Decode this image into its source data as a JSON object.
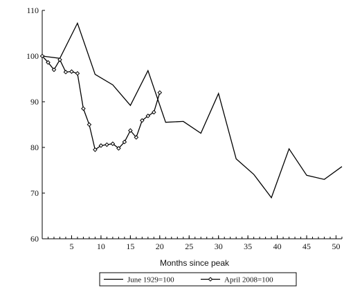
{
  "chart_data": {
    "type": "line",
    "title": "",
    "xlabel": "Months since peak",
    "ylabel": "",
    "xlim": [
      0,
      51
    ],
    "ylim": [
      60,
      110
    ],
    "x_ticks": [
      5,
      10,
      15,
      20,
      25,
      30,
      35,
      40,
      45,
      50
    ],
    "x_tick_labels": [
      "5",
      "10",
      "15",
      "20",
      "25",
      "30",
      "35",
      "40",
      "45",
      "50"
    ],
    "y_ticks": [
      60,
      70,
      80,
      90,
      100,
      110
    ],
    "y_tick_labels": [
      "60",
      "70",
      "80",
      "90",
      "100",
      "110"
    ],
    "grid": false,
    "legend_position": "bottom",
    "series": [
      {
        "name": "June 1929=100",
        "marker": "none",
        "color": "#000000",
        "points": [
          [
            0,
            100
          ],
          [
            3,
            99.5
          ],
          [
            6,
            107.2
          ],
          [
            9,
            96
          ],
          [
            12,
            93.7
          ],
          [
            15,
            89.2
          ],
          [
            18,
            96.8
          ],
          [
            21,
            85.5
          ],
          [
            24,
            85.7
          ],
          [
            27,
            83.1
          ],
          [
            30,
            91.8
          ],
          [
            33,
            77.5
          ],
          [
            36,
            74.1
          ],
          [
            39,
            69
          ],
          [
            42,
            79.7
          ],
          [
            45,
            73.9
          ],
          [
            48,
            73
          ],
          [
            51,
            75.8
          ]
        ]
      },
      {
        "name": "April 2008=100",
        "marker": "diamond",
        "color": "#000000",
        "points": [
          [
            0,
            100
          ],
          [
            1,
            98.6
          ],
          [
            2,
            97
          ],
          [
            3,
            99.2
          ],
          [
            4,
            96.5
          ],
          [
            5,
            96.6
          ],
          [
            6,
            96.2
          ],
          [
            7,
            88.5
          ],
          [
            8,
            85
          ],
          [
            9,
            79.5
          ],
          [
            10,
            80.4
          ],
          [
            11,
            80.6
          ],
          [
            12,
            80.8
          ],
          [
            13,
            79.8
          ],
          [
            14,
            81.2
          ],
          [
            15,
            83.7
          ],
          [
            16,
            82.2
          ],
          [
            17,
            85.9
          ],
          [
            18,
            86.9
          ],
          [
            19,
            87.7
          ],
          [
            20,
            92
          ]
        ]
      }
    ]
  }
}
